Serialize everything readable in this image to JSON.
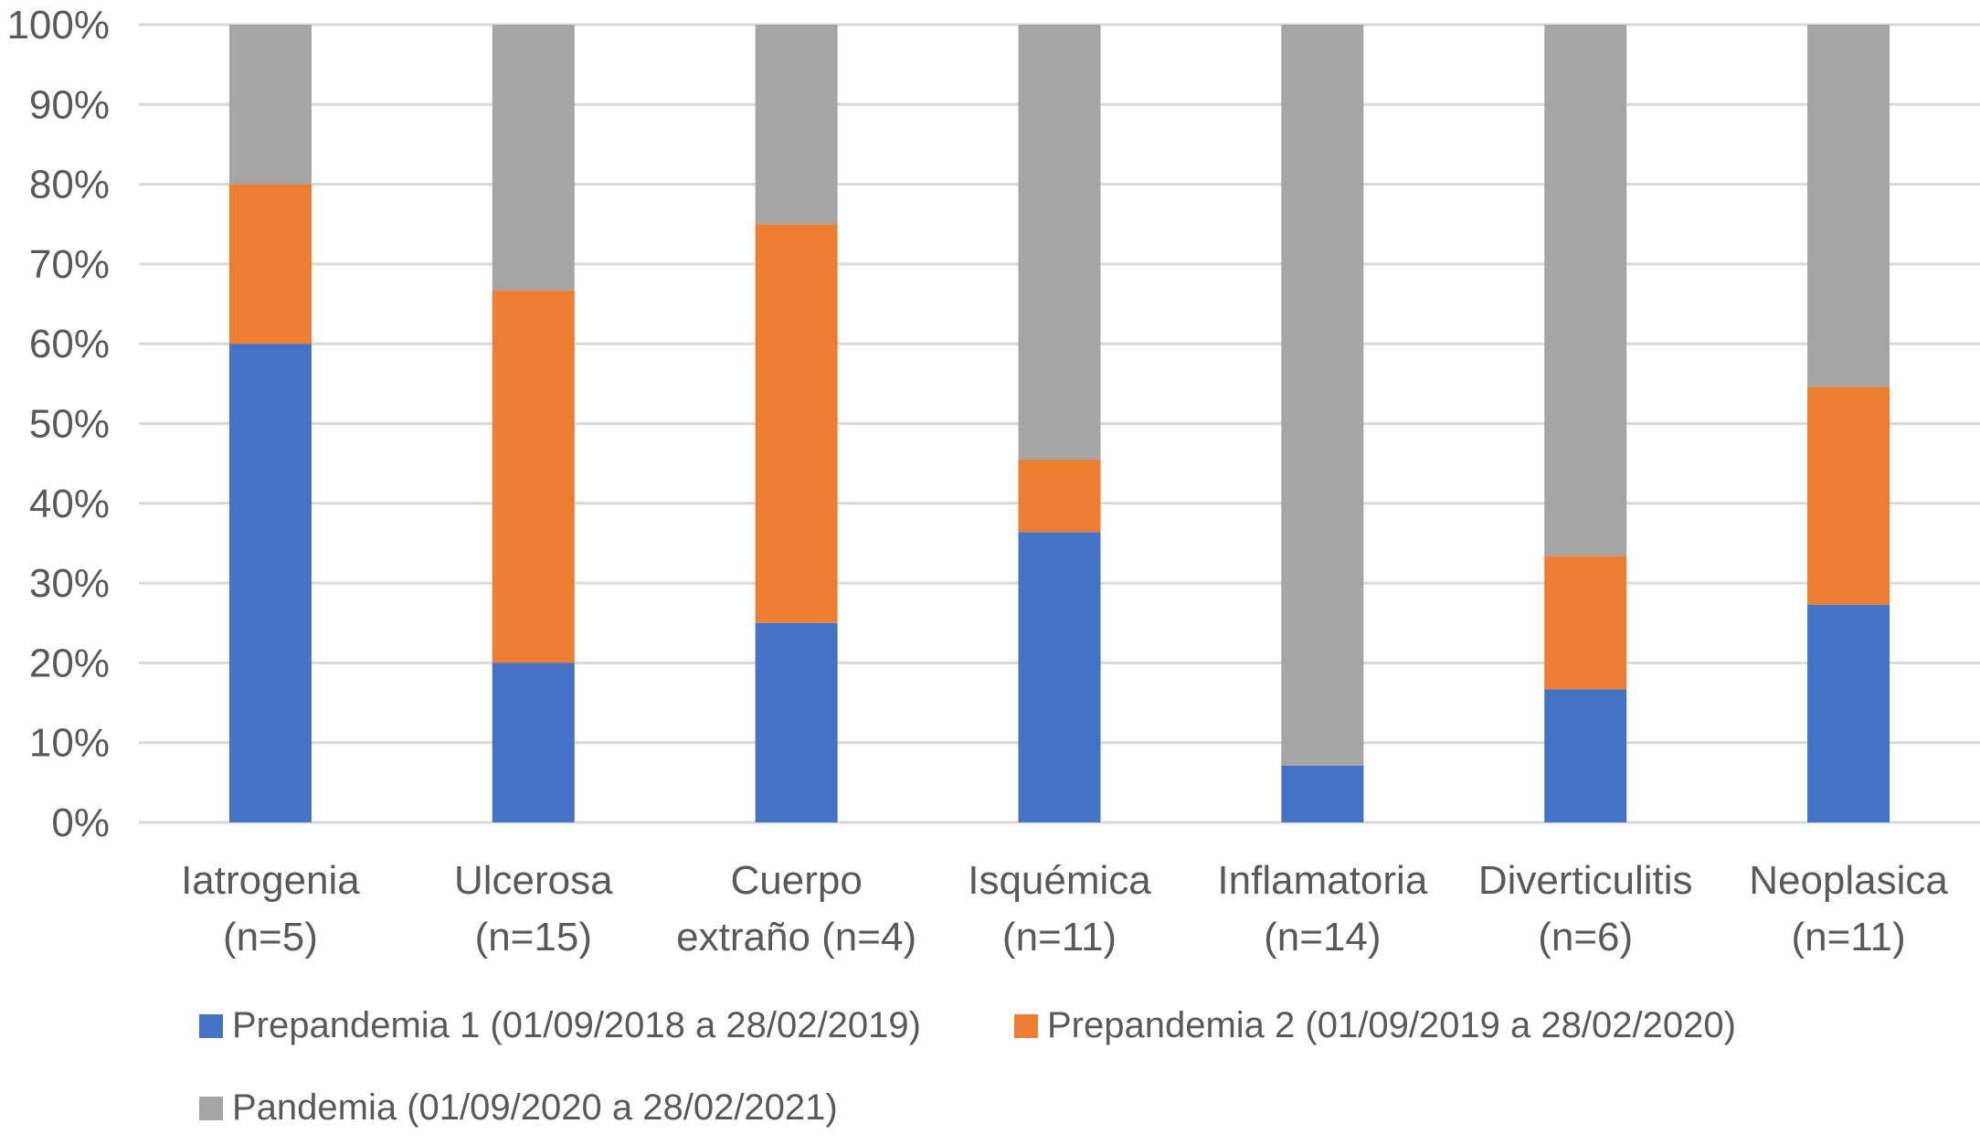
{
  "chart_data": {
    "type": "bar",
    "stacked": true,
    "percent": true,
    "title": "",
    "xlabel": "",
    "ylabel": "",
    "ylim": [
      0,
      100
    ],
    "yticks": [
      "0%",
      "10%",
      "20%",
      "30%",
      "40%",
      "50%",
      "60%",
      "70%",
      "80%",
      "90%",
      "100%"
    ],
    "grid": true,
    "legend_position": "bottom",
    "categories": [
      [
        "Iatrogenia",
        "(n=5)"
      ],
      [
        "Ulcerosa",
        "(n=15)"
      ],
      [
        "Cuerpo",
        "extraño (n=4)"
      ],
      [
        "Isquémica",
        "(n=11)"
      ],
      [
        "Inflamatoria",
        "(n=14)"
      ],
      [
        "Diverticulitis",
        "(n=6)"
      ],
      [
        "Neoplasica",
        "(n=11)"
      ]
    ],
    "series": [
      {
        "name": "Prepandemia 1 (01/09/2018 a 28/02/2019)",
        "color": "#4472C4",
        "values": [
          60.0,
          20.0,
          25.0,
          36.4,
          7.1,
          16.7,
          27.3
        ]
      },
      {
        "name": "Prepandemia 2 (01/09/2019 a 28/02/2020)",
        "color": "#ED7D31",
        "values": [
          20.0,
          46.7,
          50.0,
          9.1,
          0.0,
          16.7,
          27.3
        ]
      },
      {
        "name": "Pandemia (01/09/2020 a 28/02/2021)",
        "color": "#A5A5A5",
        "values": [
          20.0,
          33.3,
          25.0,
          54.5,
          92.9,
          66.6,
          45.4
        ]
      }
    ]
  }
}
